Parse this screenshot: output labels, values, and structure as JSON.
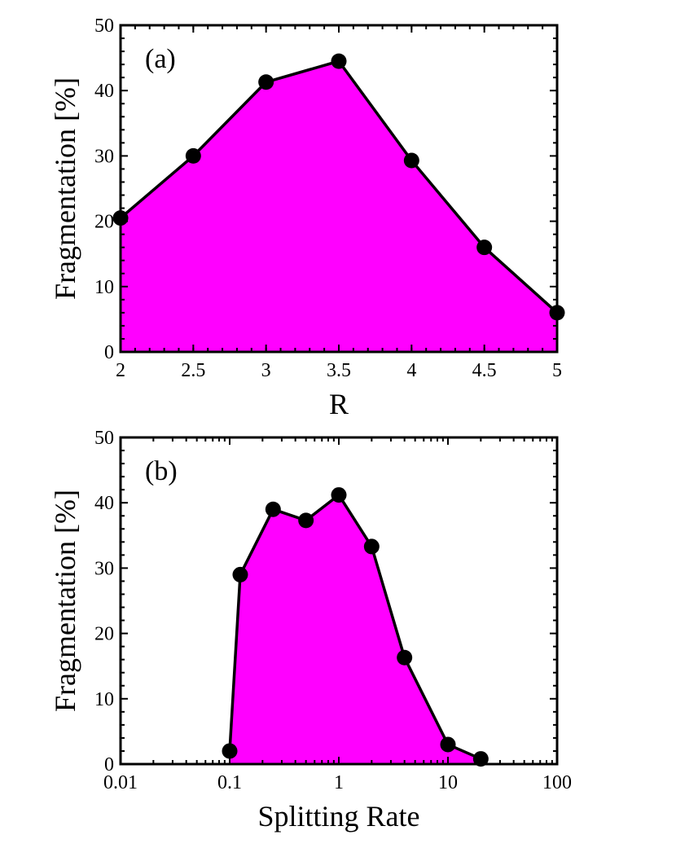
{
  "chart_data": [
    {
      "type": "area",
      "panel_label": "(a)",
      "xlabel": "R",
      "ylabel": "Fragmentation  [%]",
      "xscale": "linear",
      "xlim": [
        2,
        5
      ],
      "ylim": [
        0,
        50
      ],
      "xticks": [
        2,
        2.5,
        3,
        3.5,
        4,
        4.5,
        5
      ],
      "xtick_labels": [
        "2",
        "2.5",
        "3",
        "3.5",
        "4",
        "4.5",
        "5"
      ],
      "yticks": [
        0,
        10,
        20,
        30,
        40,
        50
      ],
      "ytick_labels": [
        "0",
        "10",
        "20",
        "30",
        "40",
        "50"
      ],
      "x": [
        2,
        2.5,
        3,
        3.5,
        4,
        4.5,
        5
      ],
      "y": [
        20.5,
        30,
        41.3,
        44.5,
        29.3,
        16,
        6
      ],
      "grid": false,
      "colors": {
        "fill": "#ff00ff",
        "line": "#000000",
        "marker": "#000000"
      }
    },
    {
      "type": "area",
      "panel_label": "(b)",
      "xlabel": "Splitting Rate",
      "ylabel": "Fragmentation  [%]",
      "xscale": "log",
      "xlim": [
        0.01,
        100
      ],
      "ylim": [
        0,
        50
      ],
      "xticks": [
        0.01,
        0.1,
        1,
        10,
        100
      ],
      "xtick_labels": [
        "0.01",
        "0.1",
        "1",
        "10",
        "100"
      ],
      "yticks": [
        0,
        10,
        20,
        30,
        40,
        50
      ],
      "ytick_labels": [
        "0",
        "10",
        "20",
        "30",
        "40",
        "50"
      ],
      "x": [
        0.1,
        0.125,
        0.25,
        0.5,
        1,
        2,
        4,
        10,
        20
      ],
      "y": [
        2,
        29,
        39,
        37.3,
        41.2,
        33.3,
        16.3,
        3,
        0.8
      ],
      "grid": false,
      "colors": {
        "fill": "#ff00ff",
        "line": "#000000",
        "marker": "#000000"
      }
    }
  ]
}
